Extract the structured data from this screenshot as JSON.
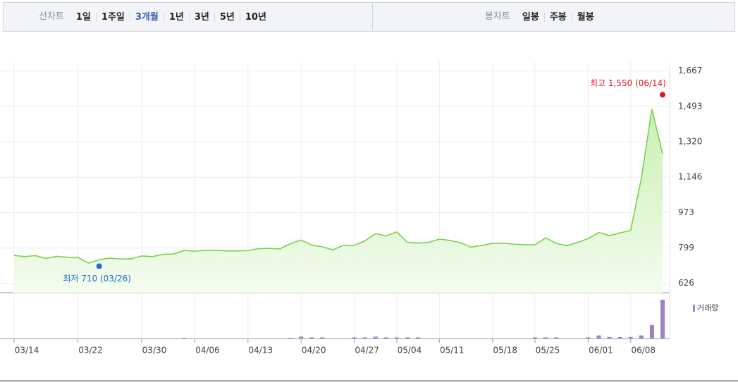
{
  "tabs": {
    "line_label": "선차트",
    "line_items": [
      "1일",
      "1주일",
      "3개월",
      "1년",
      "3년",
      "5년",
      "10년"
    ],
    "selected": "3개월",
    "candle_label": "봉차트",
    "candle_items": [
      "일봉",
      "주봉",
      "월봉"
    ]
  },
  "chart_data": [
    {
      "type": "line",
      "categories": [
        "03/14",
        null,
        null,
        null,
        null,
        null,
        "03/22",
        null,
        null,
        null,
        null,
        null,
        "03/30",
        null,
        null,
        null,
        null,
        "04/06",
        null,
        null,
        null,
        null,
        "04/13",
        null,
        null,
        null,
        null,
        "04/20",
        null,
        null,
        null,
        null,
        "04/27",
        null,
        null,
        null,
        "05/04",
        null,
        null,
        null,
        "05/11",
        null,
        null,
        null,
        null,
        "05/18",
        null,
        null,
        null,
        "05/25",
        null,
        null,
        null,
        null,
        "06/01",
        null,
        null,
        null,
        "06/08",
        null,
        null,
        null
      ],
      "series": [
        {
          "color": "#76d24f",
          "values": [
            763,
            757,
            762,
            748,
            758,
            754,
            753,
            725,
            742,
            749,
            745,
            746,
            760,
            757,
            768,
            770,
            787,
            783,
            788,
            788,
            785,
            785,
            786,
            796,
            797,
            795,
            820,
            838,
            813,
            805,
            790,
            813,
            812,
            834,
            870,
            858,
            878,
            827,
            823,
            826,
            843,
            836,
            825,
            803,
            812,
            822,
            823,
            818,
            815,
            815,
            848,
            822,
            810,
            826,
            845,
            875,
            860,
            873,
            885,
            1140,
            1480,
            1260
          ]
        }
      ],
      "ylim": [
        580,
        1710
      ],
      "yticks": [
        626,
        799,
        973,
        {
          "value": 1146,
          "label": "1,146"
        },
        {
          "value": 1320,
          "label": "1,320"
        },
        {
          "value": 1493,
          "label": "1,493"
        },
        {
          "value": 1667,
          "label": "1,667"
        }
      ],
      "grid": true,
      "annotations": [
        {
          "text": "최고 1,550 (06/14)",
          "value": 1550,
          "color": "#e8141b"
        },
        {
          "text": "최저 710 (03/26)",
          "value": 710,
          "color": "#1b6fd1"
        }
      ]
    },
    {
      "type": "bar",
      "legend": "거래량",
      "color": "#9b82c9",
      "ylim": [
        0,
        100
      ],
      "values": [
        0,
        0,
        0,
        0,
        0,
        0,
        0,
        0,
        0,
        0,
        0,
        0,
        0,
        0,
        0,
        0,
        2,
        0,
        0,
        0,
        0,
        0,
        0,
        0,
        0,
        0,
        2,
        5,
        3,
        3,
        0,
        0,
        3,
        3,
        5,
        3,
        3,
        3,
        3,
        0,
        0,
        0,
        0,
        0,
        0,
        0,
        0,
        0,
        0,
        3,
        3,
        3,
        0,
        0,
        3,
        8,
        4,
        4,
        4,
        8,
        35,
        100
      ]
    }
  ]
}
